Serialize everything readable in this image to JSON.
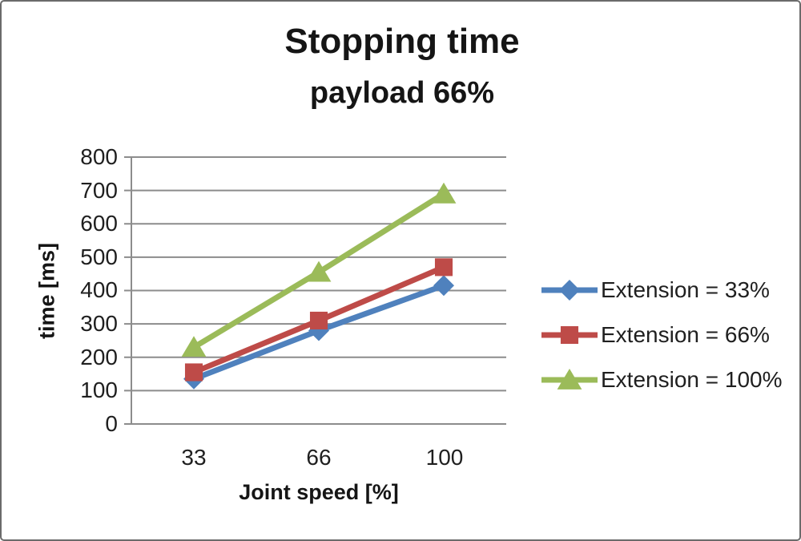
{
  "chart_data": {
    "type": "line",
    "title": "Stopping time",
    "subtitle": "payload 66%",
    "xlabel": "Joint speed [%]",
    "ylabel": "time [ms]",
    "categories": [
      "33",
      "66",
      "100"
    ],
    "series": [
      {
        "name": "Extension = 33%",
        "marker": "diamond",
        "color": "#4F81BD",
        "values": [
          135,
          280,
          415
        ]
      },
      {
        "name": "Extension = 66%",
        "marker": "square",
        "color": "#BE4B48",
        "values": [
          155,
          310,
          470
        ]
      },
      {
        "name": "Extension = 100%",
        "marker": "triangle",
        "color": "#9BBB59",
        "values": [
          230,
          455,
          690
        ]
      }
    ],
    "ylim": [
      0,
      800
    ],
    "ytick_step": 100,
    "yticks": [
      "800",
      "700",
      "600",
      "500",
      "400",
      "300",
      "200",
      "100",
      "0"
    ],
    "grid": true,
    "legend_position": "right",
    "axis_color": "#8C8C8C",
    "text_color": "#1f1f1f"
  }
}
